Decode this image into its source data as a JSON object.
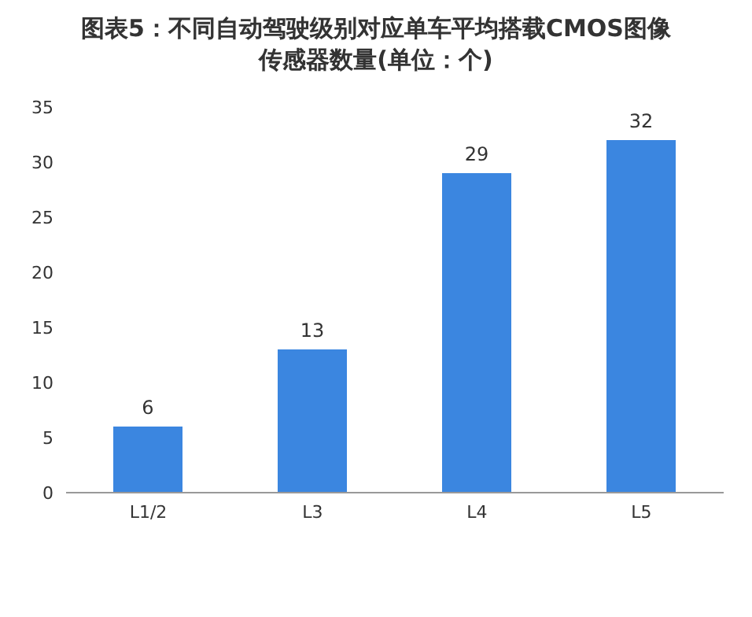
{
  "chart_data": {
    "type": "bar",
    "title": "图表5：不同自动驾驶级别对应单车平均搭载CMOS图像传感器数量(单位：个)",
    "categories": [
      "L1/2",
      "L3",
      "L4",
      "L5"
    ],
    "values": [
      6,
      13,
      29,
      32
    ],
    "color": "#3b86e0",
    "ylim": [
      0,
      35
    ],
    "yticks": [
      0,
      5,
      10,
      15,
      20,
      25,
      30,
      35
    ],
    "grid": false,
    "data_labels": true,
    "legend": false
  }
}
